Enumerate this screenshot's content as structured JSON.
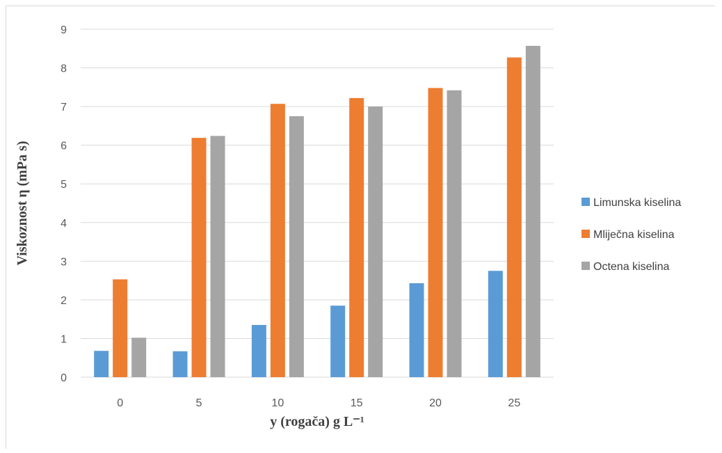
{
  "chart_data": {
    "type": "bar",
    "categories": [
      "0",
      "5",
      "10",
      "15",
      "20",
      "25"
    ],
    "series": [
      {
        "name": "Limunska kiselina",
        "color": "#5b9bd5",
        "values": [
          0.68,
          0.67,
          1.35,
          1.85,
          2.43,
          2.75
        ]
      },
      {
        "name": "Mliječna kiselina",
        "color": "#ed7d31",
        "values": [
          2.53,
          6.19,
          7.07,
          7.22,
          7.48,
          8.27
        ]
      },
      {
        "name": "Octena kiselina",
        "color": "#a5a5a5",
        "values": [
          1.02,
          6.24,
          6.75,
          7.0,
          7.42,
          8.57
        ]
      }
    ],
    "xlabel": "y (rogača) g L⁻¹",
    "ylabel": "Viskoznost η (mPa s)",
    "ylim": [
      0,
      9
    ],
    "yticks": [
      "0",
      "1",
      "2",
      "3",
      "4",
      "5",
      "6",
      "7",
      "8",
      "9"
    ],
    "grid": true,
    "legend_position": "right"
  }
}
